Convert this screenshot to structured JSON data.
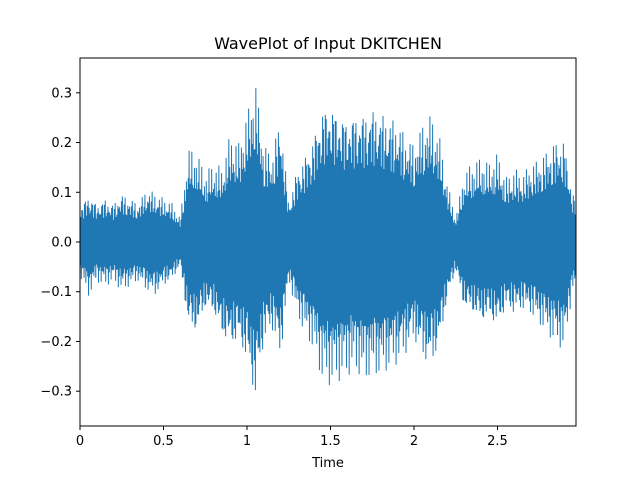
{
  "chart_data": {
    "type": "area",
    "title": "WavePlot of Input DKITCHEN",
    "xlabel": "Time",
    "ylabel": "",
    "xlim": [
      0,
      2.97
    ],
    "ylim": [
      -0.37,
      0.37
    ],
    "xticks": [
      0,
      0.5,
      1,
      1.5,
      2,
      2.5
    ],
    "xtick_labels": [
      "0",
      "0.5",
      "1",
      "1.5",
      "2",
      "2.5"
    ],
    "yticks": [
      -0.3,
      -0.2,
      -0.1,
      0.0,
      0.1,
      0.2,
      0.3
    ],
    "ytick_labels": [
      "−0.3",
      "−0.2",
      "−0.1",
      "0.0",
      "0.1",
      "0.2",
      "0.3"
    ],
    "grid": false,
    "color": "#1f77b4",
    "series": [
      {
        "x": [
          0.0,
          0.05,
          0.1,
          0.15,
          0.2,
          0.25,
          0.3,
          0.35,
          0.4,
          0.45,
          0.5,
          0.55,
          0.6,
          0.65,
          0.7,
          0.75,
          0.8,
          0.85,
          0.9,
          0.95,
          1.0,
          1.05,
          1.1,
          1.15,
          1.2,
          1.25,
          1.3,
          1.35,
          1.4,
          1.45,
          1.5,
          1.55,
          1.6,
          1.65,
          1.7,
          1.75,
          1.8,
          1.85,
          1.9,
          1.95,
          2.0,
          2.05,
          2.1,
          2.15,
          2.2,
          2.25,
          2.3,
          2.35,
          2.4,
          2.45,
          2.5,
          2.55,
          2.6,
          2.65,
          2.7,
          2.75,
          2.8,
          2.85,
          2.9,
          2.95
        ],
        "upper": [
          0.07,
          0.1,
          0.08,
          0.09,
          0.08,
          0.1,
          0.09,
          0.08,
          0.11,
          0.1,
          0.09,
          0.08,
          0.05,
          0.19,
          0.18,
          0.14,
          0.16,
          0.15,
          0.22,
          0.2,
          0.26,
          0.33,
          0.2,
          0.18,
          0.26,
          0.08,
          0.15,
          0.18,
          0.22,
          0.28,
          0.29,
          0.27,
          0.26,
          0.27,
          0.27,
          0.28,
          0.27,
          0.26,
          0.25,
          0.22,
          0.2,
          0.24,
          0.26,
          0.22,
          0.12,
          0.05,
          0.14,
          0.16,
          0.17,
          0.16,
          0.18,
          0.13,
          0.15,
          0.14,
          0.16,
          0.17,
          0.19,
          0.21,
          0.21,
          0.1
        ],
        "lower": [
          -0.07,
          -0.11,
          -0.08,
          -0.09,
          -0.08,
          -0.1,
          -0.09,
          -0.08,
          -0.1,
          -0.11,
          -0.09,
          -0.08,
          -0.05,
          -0.18,
          -0.19,
          -0.14,
          -0.15,
          -0.2,
          -0.22,
          -0.21,
          -0.25,
          -0.33,
          -0.21,
          -0.18,
          -0.24,
          -0.08,
          -0.15,
          -0.19,
          -0.22,
          -0.28,
          -0.29,
          -0.28,
          -0.27,
          -0.26,
          -0.28,
          -0.27,
          -0.27,
          -0.26,
          -0.25,
          -0.23,
          -0.2,
          -0.24,
          -0.26,
          -0.22,
          -0.12,
          -0.06,
          -0.14,
          -0.15,
          -0.17,
          -0.16,
          -0.18,
          -0.14,
          -0.15,
          -0.14,
          -0.15,
          -0.17,
          -0.19,
          -0.21,
          -0.22,
          -0.1
        ]
      }
    ]
  }
}
